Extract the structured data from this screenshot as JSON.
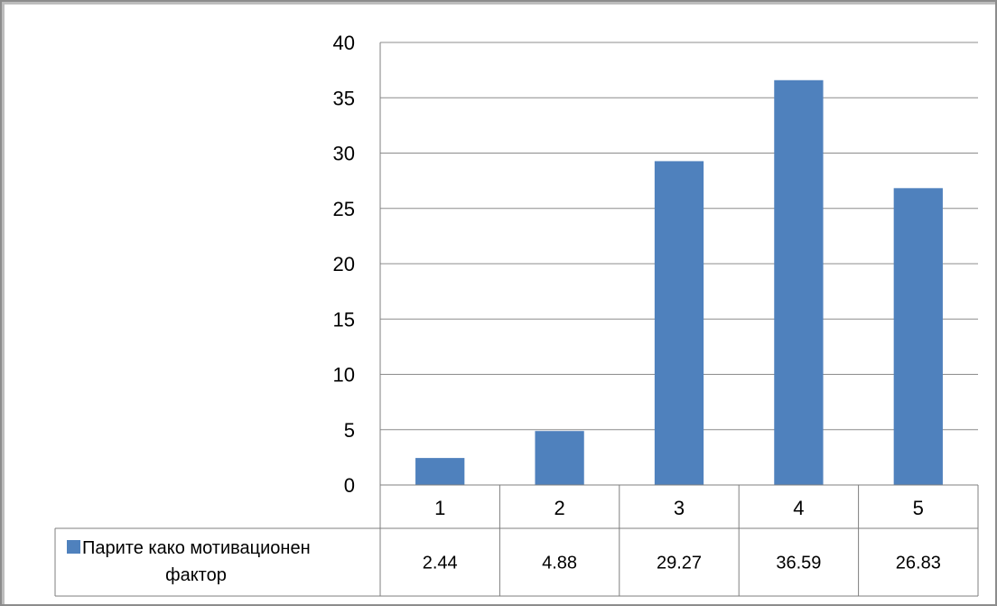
{
  "chart_data": {
    "type": "bar",
    "categories": [
      "1",
      "2",
      "3",
      "4",
      "5"
    ],
    "series": [
      {
        "name": "Парите како мотивационен фактор",
        "values": [
          2.44,
          4.88,
          29.27,
          36.59,
          26.83
        ],
        "value_labels": [
          "2.44",
          "4.88",
          "29.27",
          "36.59",
          "26.83"
        ],
        "color": "#4f81bd"
      }
    ],
    "ylim": [
      0,
      40
    ],
    "yticks": [
      "0",
      "5",
      "10",
      "15",
      "20",
      "25",
      "30",
      "35",
      "40"
    ],
    "grid": true,
    "legend": "data-table",
    "title": "",
    "xlabel": "",
    "ylabel": ""
  },
  "legend_label_lines": [
    "Парите како мотивационен",
    "фактор"
  ]
}
